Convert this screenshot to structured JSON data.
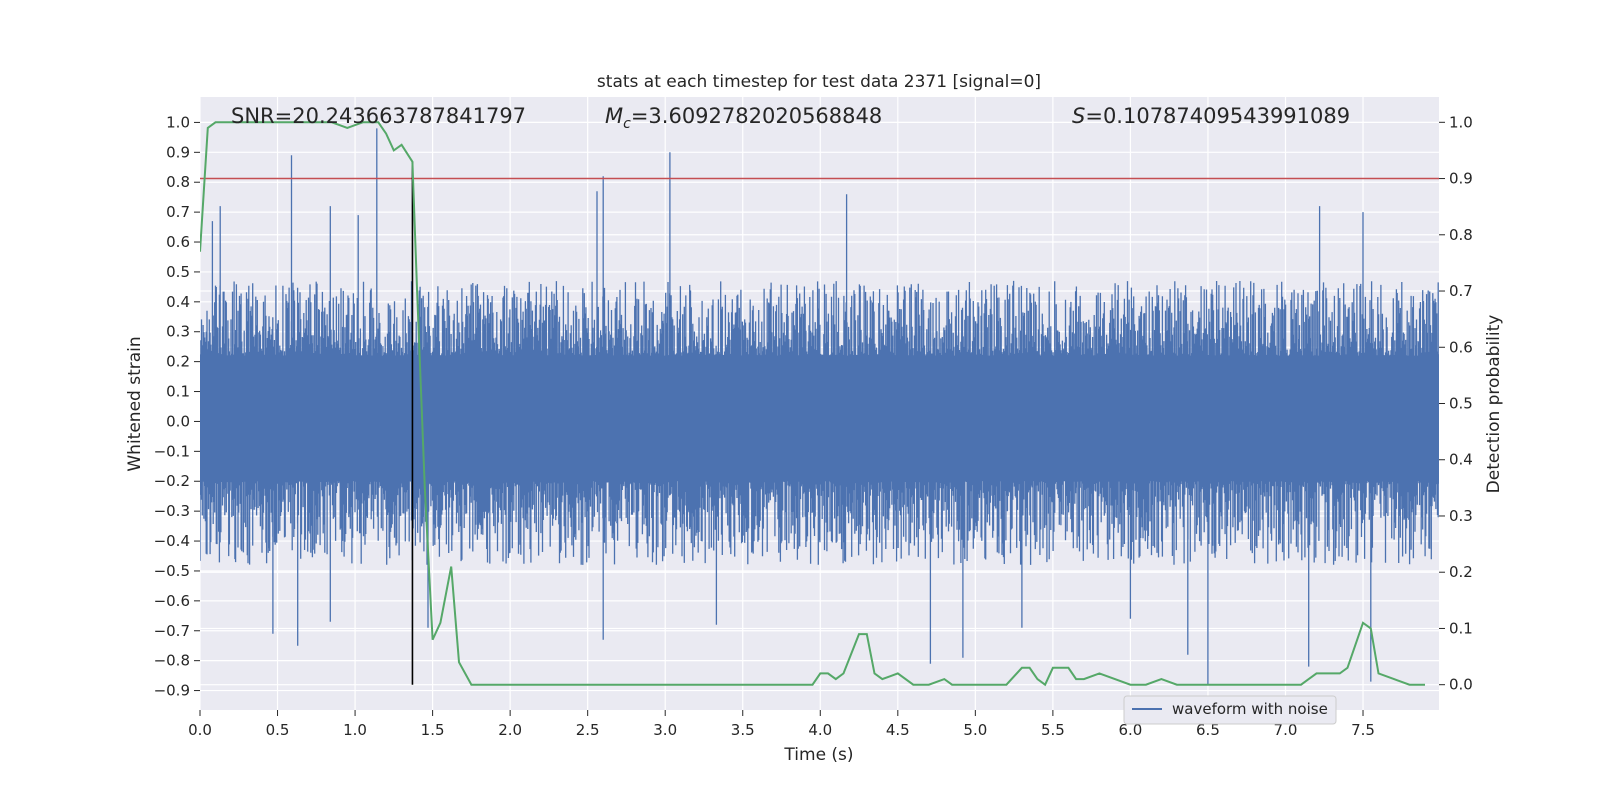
{
  "chart_data": {
    "type": "line",
    "title": "stats at each timestep for test data 2371 [signal=0]",
    "xlabel": "Time (s)",
    "ylabel_left": "Whitened strain",
    "ylabel_right": "Detection probability",
    "xlim": [
      0.0,
      7.99
    ],
    "ylim_left": [
      -0.965,
      1.085
    ],
    "ylim_right": [
      -0.045,
      1.045
    ],
    "x_ticks": [
      0.0,
      0.5,
      1.0,
      1.5,
      2.0,
      2.5,
      3.0,
      3.5,
      4.0,
      4.5,
      5.0,
      5.5,
      6.0,
      6.5,
      7.0,
      7.5
    ],
    "x_tick_labels": [
      "0.0",
      "0.5",
      "1.0",
      "1.5",
      "2.0",
      "2.5",
      "3.0",
      "3.5",
      "4.0",
      "4.5",
      "5.0",
      "5.5",
      "6.0",
      "6.5",
      "7.0",
      "7.5"
    ],
    "y_left_ticks": [
      -0.9,
      -0.8,
      -0.7,
      -0.6,
      -0.5,
      -0.4,
      -0.3,
      -0.2,
      -0.1,
      0.0,
      0.1,
      0.2,
      0.3,
      0.4,
      0.5,
      0.6,
      0.7,
      0.8,
      0.9,
      1.0
    ],
    "y_left_tick_labels": [
      "−0.9",
      "−0.8",
      "−0.7",
      "−0.6",
      "−0.5",
      "−0.4",
      "−0.3",
      "−0.2",
      "−0.1",
      "0.0",
      "0.1",
      "0.2",
      "0.3",
      "0.4",
      "0.5",
      "0.6",
      "0.7",
      "0.8",
      "0.9",
      "1.0"
    ],
    "y_right_ticks": [
      0.0,
      0.1,
      0.2,
      0.3,
      0.4,
      0.5,
      0.6,
      0.7,
      0.8,
      0.9,
      1.0
    ],
    "y_right_tick_labels": [
      "0.0",
      "0.1",
      "0.2",
      "0.3",
      "0.4",
      "0.5",
      "0.6",
      "0.7",
      "0.8",
      "0.9",
      "1.0"
    ],
    "annotations": {
      "snr": "SNR=20.243663787841797",
      "mc_symbol": "M",
      "mc_subscript": "c",
      "mc_value": "=3.6092782020568848",
      "s_symbol": "S",
      "s_value": "=0.10787409543991089"
    },
    "threshold_probability": 0.9,
    "vertical_line_time": 1.37,
    "legend": {
      "label": "waveform with noise",
      "location": "lower-right"
    },
    "waveform_spikes": [
      {
        "t": 0.59,
        "v": 0.89
      },
      {
        "t": 1.14,
        "v": 0.98
      },
      {
        "t": 2.6,
        "v": 0.82
      },
      {
        "t": 3.03,
        "v": 0.9
      },
      {
        "t": 2.56,
        "v": 0.77
      },
      {
        "t": 7.22,
        "v": 0.72
      },
      {
        "t": 7.5,
        "v": 0.7
      },
      {
        "t": 4.17,
        "v": 0.76
      },
      {
        "t": 0.13,
        "v": 0.72
      },
      {
        "t": 0.08,
        "v": 0.67
      },
      {
        "t": 0.84,
        "v": 0.72
      },
      {
        "t": 1.02,
        "v": 0.69
      },
      {
        "t": 0.63,
        "v": -0.75
      },
      {
        "t": 0.47,
        "v": -0.71
      },
      {
        "t": 6.5,
        "v": -0.88
      },
      {
        "t": 4.71,
        "v": -0.81
      },
      {
        "t": 4.92,
        "v": -0.79
      },
      {
        "t": 7.15,
        "v": -0.82
      },
      {
        "t": 7.55,
        "v": -0.87
      },
      {
        "t": 6.37,
        "v": -0.78
      },
      {
        "t": 2.6,
        "v": -0.73
      },
      {
        "t": 0.84,
        "v": -0.67
      },
      {
        "t": 3.33,
        "v": -0.68
      },
      {
        "t": 5.3,
        "v": -0.69
      },
      {
        "t": 6.0,
        "v": -0.66
      },
      {
        "t": 1.47,
        "v": -0.69
      }
    ],
    "series": [
      {
        "name": "detection probability",
        "axis": "right",
        "color": "#55a868",
        "x": [
          0.0,
          0.05,
          0.1,
          0.2,
          0.35,
          0.5,
          0.7,
          0.85,
          0.95,
          1.05,
          1.15,
          1.2,
          1.25,
          1.3,
          1.37,
          1.4,
          1.45,
          1.5,
          1.55,
          1.62,
          1.67,
          1.75,
          1.8,
          1.85,
          1.9,
          2.0,
          2.3,
          2.6,
          2.8,
          3.0,
          3.2,
          3.5,
          3.6,
          3.7,
          3.8,
          3.9,
          3.95,
          4.0,
          4.05,
          4.1,
          4.15,
          4.25,
          4.3,
          4.35,
          4.4,
          4.5,
          4.6,
          4.7,
          4.8,
          4.85,
          4.9,
          5.0,
          5.1,
          5.2,
          5.3,
          5.35,
          5.4,
          5.45,
          5.5,
          5.6,
          5.65,
          5.7,
          5.8,
          5.9,
          6.0,
          6.1,
          6.2,
          6.3,
          6.5,
          6.8,
          7.1,
          7.15,
          7.2,
          7.25,
          7.3,
          7.35,
          7.4,
          7.5,
          7.55,
          7.6,
          7.7,
          7.8,
          7.9
        ],
        "y": [
          0.77,
          0.99,
          1.0,
          1.0,
          1.0,
          1.0,
          1.0,
          1.0,
          0.99,
          1.0,
          1.0,
          0.98,
          0.95,
          0.96,
          0.93,
          0.7,
          0.35,
          0.08,
          0.11,
          0.21,
          0.04,
          0.0,
          0.0,
          0.0,
          0.0,
          0.0,
          0.0,
          0.0,
          0.0,
          0.0,
          0.0,
          0.0,
          0.0,
          0.0,
          0.0,
          0.0,
          0.0,
          0.02,
          0.02,
          0.01,
          0.02,
          0.09,
          0.09,
          0.02,
          0.01,
          0.02,
          0.0,
          0.0,
          0.01,
          0.0,
          0.0,
          0.0,
          0.0,
          0.0,
          0.03,
          0.03,
          0.01,
          0.0,
          0.03,
          0.03,
          0.01,
          0.01,
          0.02,
          0.01,
          0.0,
          0.0,
          0.01,
          0.0,
          0.0,
          0.0,
          0.0,
          0.01,
          0.02,
          0.02,
          0.02,
          0.02,
          0.03,
          0.11,
          0.1,
          0.02,
          0.01,
          0.0,
          0.0
        ]
      }
    ],
    "colors": {
      "waveform": "#4c72b0",
      "probability": "#55a868",
      "threshold": "#c44e52",
      "marker_line": "#000000",
      "plot_background": "#eaeaf2",
      "grid": "#ffffff"
    }
  }
}
